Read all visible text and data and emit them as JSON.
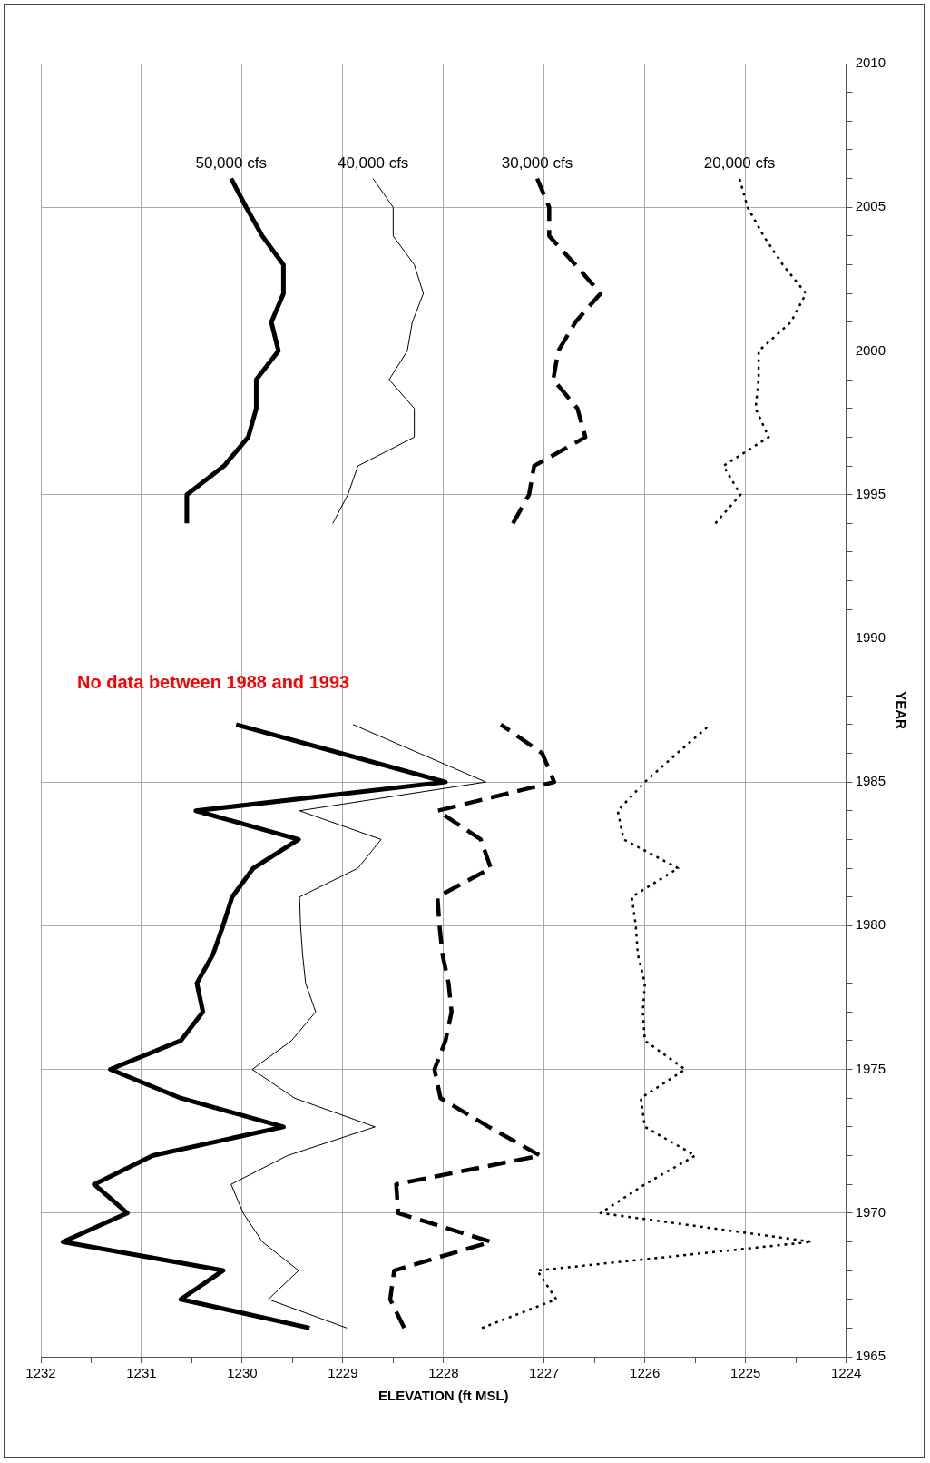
{
  "chart_data": {
    "type": "line",
    "orientation": "horizontal",
    "xlabel": "ELEVATION (ft MSL)",
    "ylabel": "YEAR",
    "annotations": [
      "No data between 1988 and 1993"
    ],
    "x": [
      1966,
      1967,
      1968,
      1969,
      1970,
      1971,
      1972,
      1973,
      1974,
      1975,
      1976,
      1977,
      1978,
      1979,
      1980,
      1981,
      1982,
      1983,
      1984,
      1985,
      1986,
      1987,
      1990,
      1994,
      1995,
      1996,
      1997,
      1998,
      1999,
      2000,
      2001,
      2002,
      2003,
      2004,
      2005,
      2006
    ],
    "series": [
      {
        "name": "50,000 cfs",
        "color": "#000000",
        "line_style": "solid",
        "values": [
          1229.33,
          1230.61,
          1230.19,
          1231.78,
          1231.14,
          1231.47,
          1230.89,
          1229.59,
          1230.61,
          1231.31,
          1230.61,
          1230.39,
          1230.45,
          1230.29,
          1230.19,
          1230.1,
          1229.89,
          1229.44,
          1230.46,
          1227.98,
          1229.02,
          1230.06,
          null,
          1230.55,
          1230.55,
          1230.18,
          1229.94,
          1229.86,
          1229.86,
          1229.64,
          1229.71,
          1229.59,
          1229.59,
          1229.8,
          1229.96,
          1230.11
        ]
      },
      {
        "name": "40,000 cfs",
        "color": "#000000",
        "line_style": "solid",
        "values": [
          1228.96,
          1229.74,
          1229.44,
          1229.8,
          1229.99,
          1230.11,
          1229.55,
          1228.68,
          1229.48,
          1229.9,
          1229.51,
          1229.27,
          1229.37,
          1229.4,
          1229.42,
          1229.43,
          1228.85,
          1228.62,
          1229.43,
          1227.58,
          1228.24,
          1228.9,
          null,
          1229.1,
          1228.95,
          1228.85,
          1228.29,
          1228.29,
          1228.54,
          1228.36,
          1228.31,
          1228.2,
          1228.29,
          1228.5,
          1228.5,
          1228.7
        ]
      },
      {
        "name": "30,000 cfs",
        "color": "#000000",
        "line_style": "dashed",
        "values": [
          1228.39,
          1228.53,
          1228.49,
          1227.53,
          1228.45,
          1228.47,
          1227.04,
          1227.55,
          1228.03,
          1228.09,
          1227.98,
          1227.92,
          1227.95,
          1228.01,
          1228.04,
          1228.06,
          1227.53,
          1227.63,
          1228.06,
          1226.9,
          1227.02,
          1227.43,
          null,
          1227.31,
          1227.15,
          1227.1,
          1226.59,
          1226.67,
          1226.91,
          1226.86,
          1226.69,
          1226.44,
          1226.69,
          1226.95,
          1226.95,
          1227.07
        ]
      },
      {
        "name": "20,000 cfs",
        "color": "#000000",
        "line_style": "dotted",
        "values": [
          1227.62,
          1226.88,
          1227.07,
          1224.34,
          1226.44,
          1226.0,
          1225.5,
          1226.0,
          1226.04,
          1225.6,
          1226.0,
          1226.02,
          1226.0,
          1226.07,
          1226.09,
          1226.13,
          1225.67,
          1226.21,
          1226.27,
          1226.0,
          1225.68,
          1225.35,
          null,
          1225.3,
          1225.05,
          1225.22,
          1224.77,
          1224.9,
          1224.87,
          1224.87,
          1224.55,
          1224.4,
          1224.63,
          1224.82,
          1224.98,
          1225.06
        ]
      }
    ],
    "ylim": [
      1965,
      2010
    ],
    "yticks": [
      1965,
      {
        "value": 1966,
        "label": null
      },
      {
        "value": 1967,
        "label": null
      },
      {
        "value": 1968,
        "label": null
      },
      {
        "value": 1969,
        "label": null
      },
      1970,
      {
        "value": 1971,
        "label": null
      },
      {
        "value": 1972,
        "label": null
      },
      {
        "value": 1973,
        "label": null
      },
      {
        "value": 1974,
        "label": null
      },
      1975,
      {
        "value": 1976,
        "label": null
      },
      {
        "value": 1977,
        "label": null
      },
      {
        "value": 1978,
        "label": null
      },
      {
        "value": 1979,
        "label": null
      },
      1980,
      {
        "value": 1981,
        "label": null
      },
      {
        "value": 1982,
        "label": null
      },
      {
        "value": 1983,
        "label": null
      },
      {
        "value": 1984,
        "label": null
      },
      1985,
      {
        "value": 1986,
        "label": null
      },
      {
        "value": 1987,
        "label": null
      },
      {
        "value": 1988,
        "label": null
      },
      {
        "value": 1989,
        "label": null
      },
      1990,
      {
        "value": 1991,
        "label": null
      },
      {
        "value": 1992,
        "label": null
      },
      {
        "value": 1993,
        "label": null
      },
      {
        "value": 1994,
        "label": null
      },
      1995,
      {
        "value": 1996,
        "label": null
      },
      {
        "value": 1997,
        "label": null
      },
      {
        "value": 1998,
        "label": null
      },
      {
        "value": 1999,
        "label": null
      },
      2000,
      {
        "value": 2001,
        "label": null
      },
      {
        "value": 2002,
        "label": null
      },
      {
        "value": 2003,
        "label": null
      },
      {
        "value": 2004,
        "label": null
      },
      2005,
      {
        "value": 2006,
        "label": null
      },
      {
        "value": 2007,
        "label": null
      },
      {
        "value": 2008,
        "label": null
      },
      {
        "value": 2009,
        "label": null
      },
      2010
    ],
    "xlim": [
      1232,
      1224
    ],
    "xticks": [
      1224,
      {
        "value": 1224.5,
        "label": null
      },
      1225,
      {
        "value": 1225.5,
        "label": null
      },
      1226,
      {
        "value": 1226.5,
        "label": null
      },
      1227,
      {
        "value": 1227.5,
        "label": null
      },
      1228,
      {
        "value": 1228.5,
        "label": null
      },
      1229,
      {
        "value": 1229.5,
        "label": null
      },
      1230,
      {
        "value": 1230.5,
        "label": null
      },
      1231,
      {
        "value": 1231.5,
        "label": null
      },
      1232
    ],
    "grid": true,
    "legend": false,
    "marker": "none"
  }
}
